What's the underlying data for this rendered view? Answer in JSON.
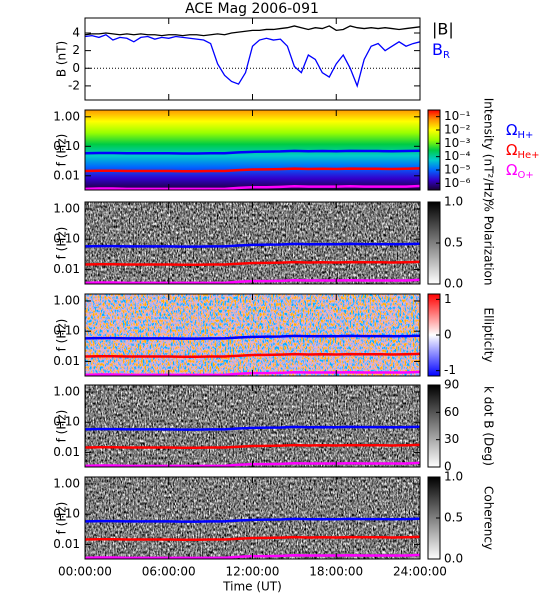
{
  "chart_data": [
    {
      "type": "line",
      "title": "ACE Mag 2006-091",
      "y_label": "B (nT)",
      "xlim": [
        0,
        24
      ],
      "ylim": [
        -3.6,
        5.7
      ],
      "yticks": [
        -2,
        0,
        2,
        4
      ],
      "x": [
        0,
        0.5,
        1,
        1.5,
        2,
        2.5,
        3,
        3.5,
        4,
        4.5,
        5,
        5.5,
        6,
        6.5,
        7,
        7.5,
        8,
        8.5,
        9,
        9.5,
        10,
        10.5,
        11,
        11.5,
        12,
        12.5,
        13,
        13.5,
        14,
        14.5,
        15,
        15.5,
        16,
        16.5,
        17,
        17.5,
        18,
        18.5,
        19,
        19.5,
        20,
        20.5,
        21,
        21.5,
        22,
        22.5,
        23,
        23.5,
        24
      ],
      "series": [
        {
          "name": "|B|",
          "color": "#000000",
          "values": [
            3.8,
            3.9,
            3.9,
            4.0,
            3.9,
            3.8,
            3.9,
            3.8,
            3.9,
            3.8,
            3.8,
            3.7,
            3.8,
            3.8,
            3.7,
            3.8,
            3.8,
            3.7,
            3.8,
            3.9,
            3.8,
            4.0,
            4.1,
            4.2,
            4.3,
            4.3,
            4.4,
            4.4,
            4.5,
            4.6,
            4.8,
            4.6,
            4.4,
            4.6,
            4.5,
            4.8,
            4.3,
            4.4,
            4.8,
            4.6,
            4.5,
            4.6,
            4.5,
            4.6,
            4.5,
            4.4,
            4.5,
            4.6,
            4.7
          ]
        },
        {
          "name": "B_R",
          "color": "#0000ff",
          "values": [
            3.6,
            3.7,
            3.5,
            3.8,
            3.2,
            3.5,
            3.4,
            3.0,
            3.5,
            3.6,
            3.3,
            3.5,
            3.4,
            3.6,
            3.5,
            3.4,
            3.3,
            3.2,
            2.8,
            0.5,
            -0.8,
            -1.5,
            -1.8,
            -0.5,
            2.5,
            3.2,
            3.4,
            3.2,
            3.3,
            2.5,
            0.2,
            -0.5,
            1.5,
            1.0,
            -0.5,
            -1.0,
            0.5,
            1.5,
            0.0,
            -2.0,
            1.0,
            2.5,
            2.8,
            2.0,
            2.5,
            3.0,
            2.5,
            2.8,
            3.0
          ]
        }
      ]
    },
    {
      "type": "spectrogram",
      "y_label": "f (Hz)",
      "log_scale": true,
      "xlim": [
        0,
        24
      ],
      "ylim": [
        0.0033,
        1.7
      ],
      "yticks": [
        {
          "value": 1,
          "label": "1.00"
        },
        {
          "value": 0.1,
          "label": "0.10"
        },
        {
          "value": 0.01,
          "label": "0.01"
        }
      ],
      "x": [
        0,
        1,
        2,
        3,
        4,
        5,
        6,
        7,
        8,
        9,
        10,
        11,
        12,
        13,
        14,
        15,
        16,
        17,
        18,
        19,
        20,
        21,
        22,
        23,
        24
      ],
      "series": [
        {
          "name": "Ω_H+",
          "color": "#0000ff",
          "values": [
            0.058,
            0.059,
            0.059,
            0.058,
            0.058,
            0.058,
            0.058,
            0.057,
            0.057,
            0.058,
            0.058,
            0.062,
            0.065,
            0.066,
            0.067,
            0.07,
            0.068,
            0.069,
            0.068,
            0.07,
            0.069,
            0.069,
            0.068,
            0.069,
            0.071
          ]
        },
        {
          "name": "Ω_He+",
          "color": "#ff0000",
          "values": [
            0.0145,
            0.0148,
            0.0148,
            0.0145,
            0.0145,
            0.0145,
            0.0145,
            0.0143,
            0.0143,
            0.0145,
            0.0145,
            0.0155,
            0.0163,
            0.0165,
            0.0168,
            0.0175,
            0.017,
            0.0173,
            0.017,
            0.0175,
            0.0173,
            0.0173,
            0.017,
            0.0173,
            0.0178
          ]
        },
        {
          "name": "Ω_O+",
          "color": "#ff00ff",
          "values": [
            0.0036,
            0.0037,
            0.0037,
            0.0036,
            0.0036,
            0.0036,
            0.0036,
            0.0036,
            0.0036,
            0.0036,
            0.0036,
            0.0039,
            0.0041,
            0.0041,
            0.0042,
            0.0044,
            0.0043,
            0.0043,
            0.0043,
            0.0044,
            0.0043,
            0.0043,
            0.0043,
            0.0043,
            0.0045
          ]
        }
      ],
      "colorbar": {
        "label": "Intensity (nT²/Hz)",
        "clim": [
          -6.5,
          -0.5
        ],
        "ticks": [
          {
            "value": -1,
            "label": "10⁻¹"
          },
          {
            "value": -2,
            "label": "10⁻²"
          },
          {
            "value": -3,
            "label": "10⁻³"
          },
          {
            "value": -4,
            "label": "10⁻⁴"
          },
          {
            "value": -5,
            "label": "10⁻⁵"
          },
          {
            "value": -6,
            "label": "10⁻⁶"
          }
        ],
        "colors": [
          "#1a0033",
          "#3300cc",
          "#0066ff",
          "#00cccc",
          "#00cc44",
          "#99ff00",
          "#ffff00",
          "#ff9900",
          "#ff0000"
        ]
      }
    },
    {
      "type": "spectrogram",
      "y_label": "f (Hz)",
      "log_scale": true,
      "xlim": [
        0,
        24
      ],
      "ylim": [
        0.0033,
        1.7
      ],
      "yticks": [
        {
          "value": 1,
          "label": "1.00"
        },
        {
          "value": 0.1,
          "label": "0.10"
        },
        {
          "value": 0.01,
          "label": "0.01"
        }
      ],
      "colorbar": {
        "label": "% Polarization",
        "clim": [
          0,
          1
        ],
        "ticks": [
          {
            "value": 0,
            "label": "0.0"
          },
          {
            "value": 0.5,
            "label": "0.5"
          },
          {
            "value": 1,
            "label": "1.0"
          }
        ],
        "colors": [
          "#ffffff",
          "#000000"
        ]
      }
    },
    {
      "type": "spectrogram",
      "y_label": "f (Hz)",
      "log_scale": true,
      "xlim": [
        0,
        24
      ],
      "ylim": [
        0.0033,
        1.7
      ],
      "yticks": [
        {
          "value": 1,
          "label": "1.00"
        },
        {
          "value": 0.1,
          "label": "0.10"
        },
        {
          "value": 0.01,
          "label": "0.01"
        }
      ],
      "colorbar": {
        "label": "Ellipticity",
        "clim": [
          -1.15,
          1.15
        ],
        "ticks": [
          -1,
          0,
          1
        ],
        "colors": [
          "#0000ff",
          "#ffffff",
          "#ff0000"
        ]
      }
    },
    {
      "type": "spectrogram",
      "y_label": "f (Hz)",
      "log_scale": true,
      "xlim": [
        0,
        24
      ],
      "ylim": [
        0.0033,
        1.7
      ],
      "yticks": [
        {
          "value": 1,
          "label": "1.00"
        },
        {
          "value": 0.1,
          "label": "0.10"
        },
        {
          "value": 0.01,
          "label": "0.01"
        }
      ],
      "colorbar": {
        "label": "k dot B (Deg)",
        "clim": [
          0,
          90
        ],
        "ticks": [
          0,
          30,
          60,
          90
        ],
        "colors": [
          "#ffffff",
          "#000000"
        ]
      }
    },
    {
      "type": "spectrogram",
      "y_label": "f (Hz)",
      "log_scale": true,
      "xlim": [
        0,
        24
      ],
      "ylim": [
        0.0033,
        1.7
      ],
      "yticks": [
        {
          "value": 1,
          "label": "1.00"
        },
        {
          "value": 0.1,
          "label": "0.10"
        },
        {
          "value": 0.01,
          "label": "0.01"
        }
      ],
      "x_label": "Time (UT)",
      "xticks": [
        {
          "value": 0,
          "label": "00:00:00"
        },
        {
          "value": 6,
          "label": "06:00:00"
        },
        {
          "value": 12,
          "label": "12:00:00"
        },
        {
          "value": 18,
          "label": "18:00:00"
        },
        {
          "value": 24,
          "label": "24:00:00"
        }
      ],
      "colorbar": {
        "label": "Coherency",
        "clim": [
          0,
          1
        ],
        "ticks": [
          {
            "value": 0,
            "label": "0.0"
          },
          {
            "value": 0.5,
            "label": "0.5"
          },
          {
            "value": 1,
            "label": "1.0"
          }
        ],
        "colors": [
          "#ffffff",
          "#000000"
        ]
      }
    }
  ]
}
